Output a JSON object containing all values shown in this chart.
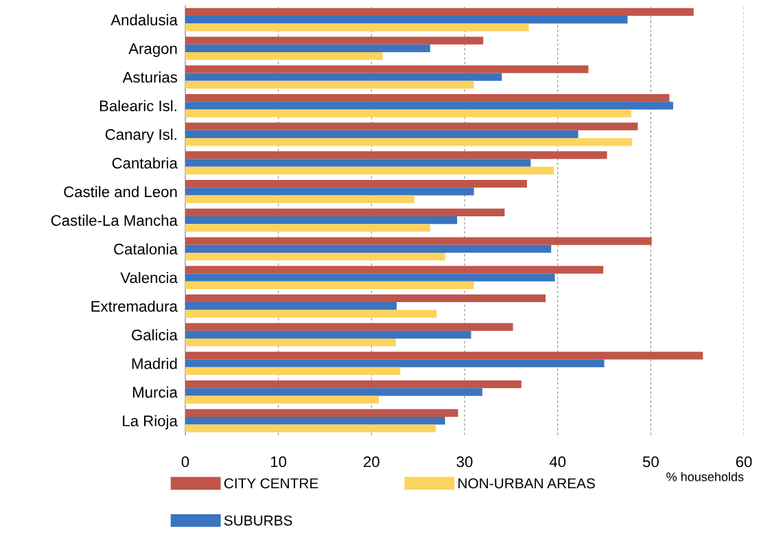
{
  "chart_data": {
    "type": "bar",
    "orientation": "horizontal",
    "xlabel": "% households",
    "categories": [
      "Andalusia",
      "Aragon",
      "Asturias",
      "Balearic Isl.",
      "Canary Isl.",
      "Cantabria",
      "Castile and Leon",
      "Castile-La Mancha",
      "Catalonia",
      "Valencia",
      "Extremadura",
      "Galicia",
      "Madrid",
      "Murcia",
      "La Rioja"
    ],
    "series": [
      {
        "name": "CITY CENTRE",
        "color": "#c0564a",
        "values": [
          54.6,
          32.0,
          43.3,
          52.0,
          48.6,
          45.3,
          36.7,
          34.3,
          50.1,
          44.9,
          38.7,
          35.2,
          55.6,
          36.1,
          29.3
        ]
      },
      {
        "name": "SUBURBS",
        "color": "#3b74bf",
        "values": [
          47.5,
          26.3,
          34.0,
          52.4,
          42.2,
          37.1,
          31.0,
          29.2,
          39.3,
          39.7,
          22.7,
          30.7,
          45.0,
          31.9,
          27.9
        ]
      },
      {
        "name": "NON-URBAN AREAS",
        "color": "#fcd35c",
        "values": [
          36.9,
          21.2,
          31.0,
          47.9,
          48.0,
          39.6,
          24.6,
          26.3,
          27.9,
          31.0,
          27.0,
          22.6,
          23.1,
          20.8,
          26.9
        ]
      }
    ],
    "xlim": [
      0,
      60
    ],
    "xticks": [
      0,
      10,
      20,
      30,
      40,
      50,
      60
    ],
    "grid": "x",
    "legend": "bottom"
  }
}
